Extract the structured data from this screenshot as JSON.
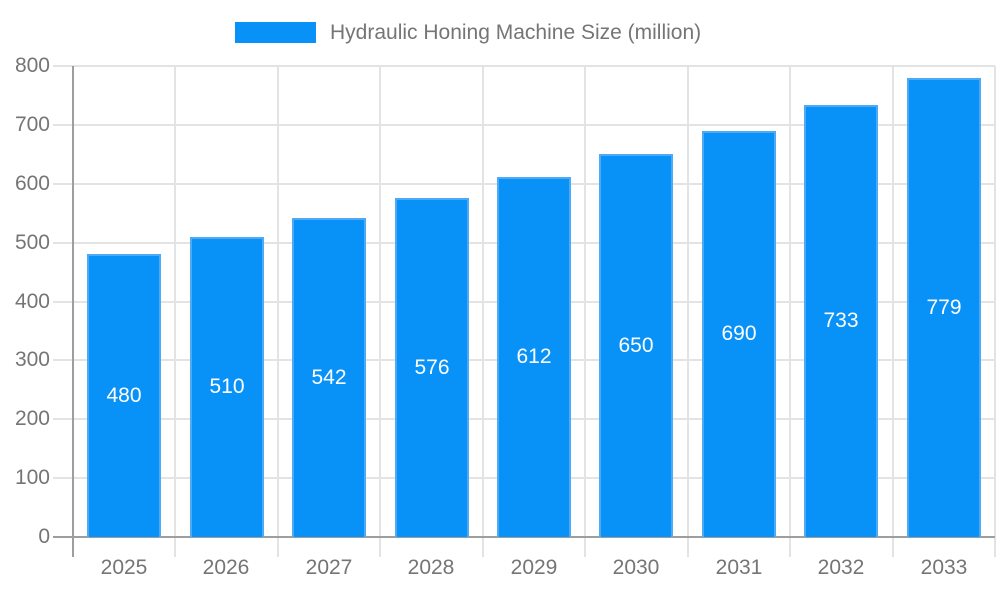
{
  "legend": {
    "label": "Hydraulic Honing Machine Size (million)"
  },
  "chart_data": {
    "type": "bar",
    "title": "",
    "xlabel": "",
    "ylabel": "",
    "categories": [
      "2025",
      "2026",
      "2027",
      "2028",
      "2029",
      "2030",
      "2031",
      "2032",
      "2033"
    ],
    "series": [
      {
        "name": "Hydraulic Honing Machine Size (million)",
        "values": [
          480,
          510,
          542,
          576,
          612,
          650,
          690,
          733,
          779
        ]
      }
    ],
    "ylim": [
      0,
      800
    ],
    "yticks": [
      0,
      100,
      200,
      300,
      400,
      500,
      600,
      700,
      800
    ],
    "grid": true,
    "value_labels": "centered-white",
    "legend_position": "top",
    "colors": {
      "bar": "#0892f7",
      "bar_edge": "#4faaf5",
      "grid": "#e3e3e3",
      "axis": "#9e9e9e",
      "tick_text": "#757575",
      "value_text": "#ffffff",
      "background": "#ffffff"
    }
  }
}
